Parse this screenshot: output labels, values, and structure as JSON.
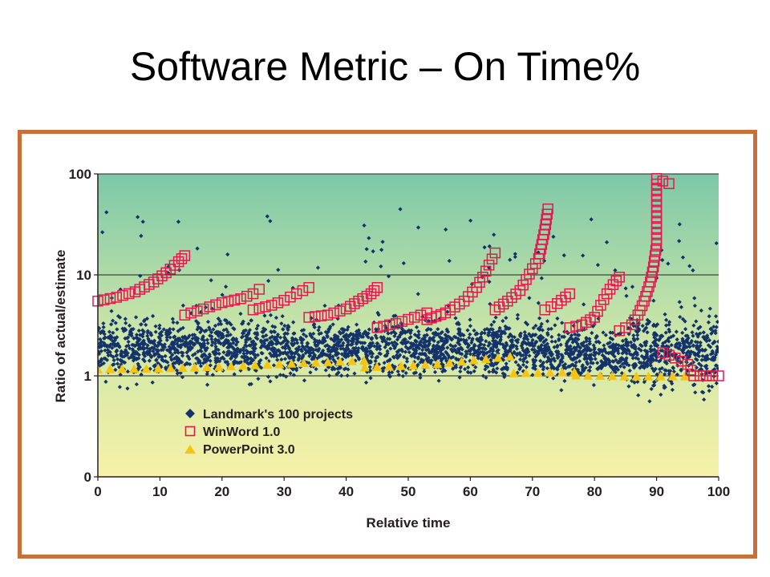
{
  "slide": {
    "title": "Software Metric – On Time%"
  },
  "colors": {
    "frame": "#c8703a",
    "landmark": "#14336b",
    "winword": "#e0194f",
    "powerpoint": "#f6c512",
    "bg_top": "#7dc8a8",
    "bg_bottom": "#f6f2a8"
  },
  "chart_data": {
    "type": "scatter",
    "title": "",
    "xlabel": "Relative time",
    "ylabel": "Ratio of actual/estimate",
    "xlim": [
      0,
      100
    ],
    "y_scale": "log",
    "x_ticks": [
      "0",
      "10",
      "20",
      "30",
      "40",
      "50",
      "60",
      "70",
      "80",
      "90",
      "100"
    ],
    "y_ticks": [
      "100",
      "10",
      "1",
      "0"
    ],
    "grid": "horizontal at 1, 10, 100",
    "legend_position": "bottom-left",
    "legend": [
      "Landmark's 100 projects",
      "WinWord 1.0",
      "PowerPoint 3.0"
    ],
    "series": [
      {
        "name": "Landmark's 100 projects",
        "marker": "diamond",
        "color": "#14336b",
        "band_center": [
          [
            0,
            2.0
          ],
          [
            10,
            1.9
          ],
          [
            20,
            1.9
          ],
          [
            30,
            1.9
          ],
          [
            40,
            1.9
          ],
          [
            50,
            1.9
          ],
          [
            60,
            1.9
          ],
          [
            70,
            1.8
          ],
          [
            80,
            1.7
          ],
          [
            90,
            1.7
          ],
          [
            95,
            1.8
          ],
          [
            100,
            1.6
          ]
        ],
        "approx_count": 3000
      },
      {
        "name": "WinWord 1.0",
        "marker": "square",
        "color": "#e0194f",
        "segments": [
          [
            [
              0,
              5.5
            ],
            [
              3,
              6.0
            ],
            [
              6,
              6.8
            ],
            [
              9,
              8.5
            ],
            [
              11,
              10.5
            ],
            [
              13,
              13.5
            ],
            [
              14,
              15.5
            ]
          ],
          [
            [
              14,
              4.0
            ],
            [
              17,
              4.6
            ],
            [
              20,
              5.3
            ],
            [
              23,
              5.8
            ],
            [
              25,
              6.5
            ],
            [
              26,
              7.2
            ]
          ],
          [
            [
              25,
              4.5
            ],
            [
              28,
              5.0
            ],
            [
              30,
              5.6
            ],
            [
              32,
              6.5
            ],
            [
              34,
              7.5
            ]
          ],
          [
            [
              34,
              3.8
            ],
            [
              37,
              4.0
            ],
            [
              40,
              4.6
            ],
            [
              42,
              5.5
            ],
            [
              44,
              6.5
            ],
            [
              45,
              7.5
            ]
          ],
          [
            [
              45,
              3.0
            ],
            [
              48,
              3.3
            ],
            [
              51,
              3.8
            ],
            [
              53,
              4.2
            ]
          ],
          [
            [
              53,
              3.6
            ],
            [
              56,
              4.2
            ],
            [
              59,
              5.5
            ],
            [
              61,
              7.5
            ],
            [
              62,
              9.5
            ],
            [
              63,
              12.5
            ],
            [
              64,
              16.5
            ]
          ],
          [
            [
              64,
              4.5
            ],
            [
              66,
              5.5
            ],
            [
              68,
              7.0
            ],
            [
              69,
              9.0
            ],
            [
              70,
              11.5
            ],
            [
              71,
              14.5
            ],
            [
              71.5,
              20
            ],
            [
              72,
              28
            ],
            [
              72.5,
              45
            ]
          ],
          [
            [
              72,
              4.5
            ],
            [
              74,
              5.2
            ],
            [
              76,
              6.5
            ]
          ],
          [
            [
              76,
              3.0
            ],
            [
              78,
              3.2
            ],
            [
              80,
              3.8
            ],
            [
              81,
              5.0
            ],
            [
              82,
              6.5
            ],
            [
              83,
              8.0
            ],
            [
              84,
              9.5
            ]
          ],
          [
            [
              84,
              2.8
            ],
            [
              86,
              3.2
            ],
            [
              87,
              4.0
            ],
            [
              88,
              5.5
            ],
            [
              89,
              8.5
            ],
            [
              89.5,
              12
            ],
            [
              90,
              20
            ],
            [
              90,
              90
            ],
            [
              91,
              85
            ],
            [
              92,
              80
            ]
          ],
          [
            [
              91,
              1.7
            ],
            [
              92,
              1.6
            ],
            [
              93,
              1.5
            ],
            [
              94,
              1.4
            ],
            [
              95,
              1.3
            ],
            [
              96,
              1.0
            ],
            [
              98,
              1.0
            ],
            [
              100,
              1.0
            ]
          ]
        ]
      },
      {
        "name": "PowerPoint 3.0",
        "marker": "triangle",
        "color": "#f6c512",
        "segments": [
          [
            [
              0,
              1.15
            ],
            [
              10,
              1.17
            ],
            [
              20,
              1.22
            ],
            [
              30,
              1.3
            ],
            [
              40,
              1.38
            ],
            [
              43,
              1.4
            ]
          ],
          [
            [
              43,
              1.2
            ],
            [
              50,
              1.25
            ],
            [
              55,
              1.3
            ],
            [
              60,
              1.4
            ],
            [
              67,
              1.55
            ]
          ],
          [
            [
              67,
              1.05
            ],
            [
              77,
              1.08
            ]
          ],
          [
            [
              77,
              1.0
            ],
            [
              85,
              0.98
            ],
            [
              95,
              0.98
            ]
          ]
        ]
      }
    ]
  }
}
